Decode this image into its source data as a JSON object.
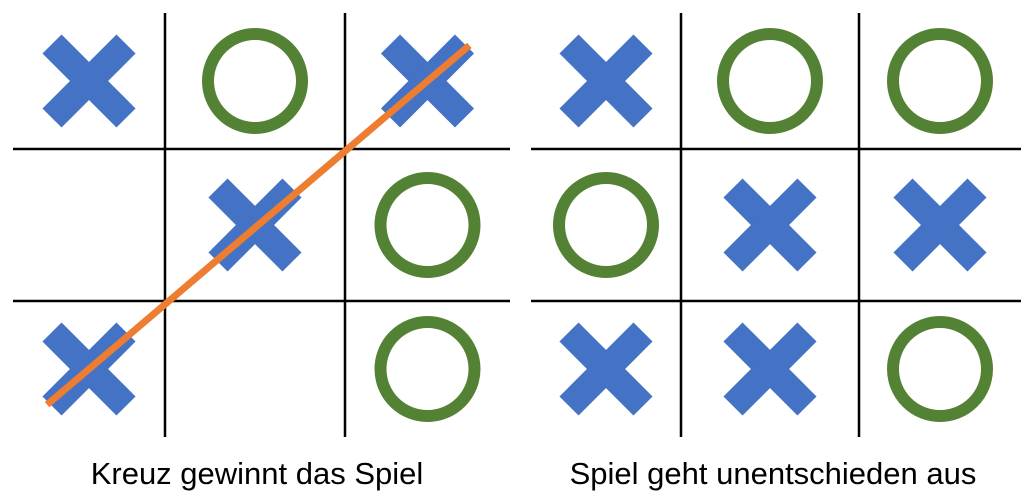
{
  "boards": [
    {
      "id": "win",
      "caption": "Kreuz gewinnt das Spiel",
      "cells": [
        [
          "X",
          "O",
          "X"
        ],
        [
          "",
          "X",
          "O"
        ],
        [
          "X",
          "",
          "O"
        ]
      ],
      "win_line": {
        "from": [
          2,
          0
        ],
        "to": [
          0,
          2
        ]
      }
    },
    {
      "id": "draw",
      "caption": "Spiel geht unentschieden aus",
      "cells": [
        [
          "X",
          "O",
          "O"
        ],
        [
          "O",
          "X",
          "X"
        ],
        [
          "X",
          "X",
          "O"
        ]
      ],
      "win_line": null
    }
  ],
  "colors": {
    "cross": "#4472C4",
    "circle": "#548235",
    "win_line": "#ED7D31",
    "grid": "#000000"
  }
}
